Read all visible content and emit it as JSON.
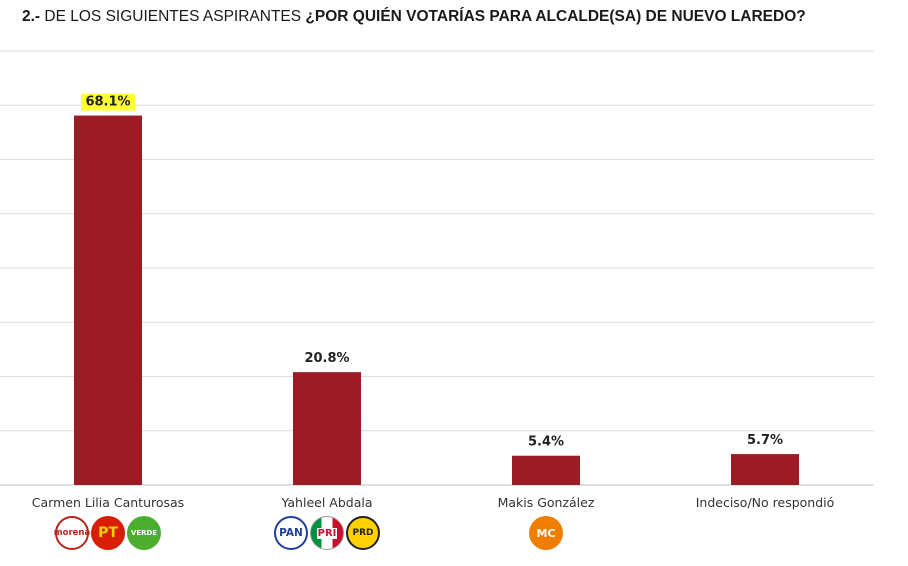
{
  "header": {
    "number": "2.-",
    "lead": "DE LOS SIGUIENTES ASPIRANTES",
    "question": "¿POR QUIÉN VOTARÍAS PARA ALCALDE(SA) DE NUEVO LAREDO?"
  },
  "colors": {
    "bar": "#9B1C24",
    "highlight": "#FFFF33",
    "grid": "#dcdcdc",
    "morena": "#b5261e",
    "pt": "#d81e05",
    "verde": "#4cae2e",
    "pan": "#1f3f99",
    "pri": "#c8102e",
    "prd": "#ffd100",
    "mc": "#ef7d00"
  },
  "chart_data": {
    "type": "bar",
    "title": "¿POR QUIÉN VOTARÍAS PARA ALCALDE(SA) DE NUEVO LAREDO?",
    "xlabel": "",
    "ylabel": "",
    "ylim": [
      0,
      80
    ],
    "grid": true,
    "categories": [
      "Carmen Lilia Canturosas",
      "Yahleel Abdala",
      "Makis González",
      "Indeciso/No respondió"
    ],
    "values": [
      68.1,
      20.8,
      5.4,
      5.7
    ],
    "labels": [
      "68.1%",
      "20.8%",
      "5.4%",
      "5.7%"
    ],
    "highlighted_index": 0
  },
  "logos": [
    {
      "names": [
        "morena-logo",
        "pt-logo",
        "verde-logo"
      ],
      "texts": [
        "morena",
        "PT",
        "VERDE"
      ]
    },
    {
      "names": [
        "pan-logo",
        "pri-logo",
        "prd-logo"
      ],
      "texts": [
        "PAN",
        "PRI",
        "PRD"
      ]
    },
    {
      "names": [
        "movimiento-ciudadano-logo"
      ],
      "texts": [
        "MC"
      ]
    },
    {
      "names": [],
      "texts": []
    }
  ]
}
